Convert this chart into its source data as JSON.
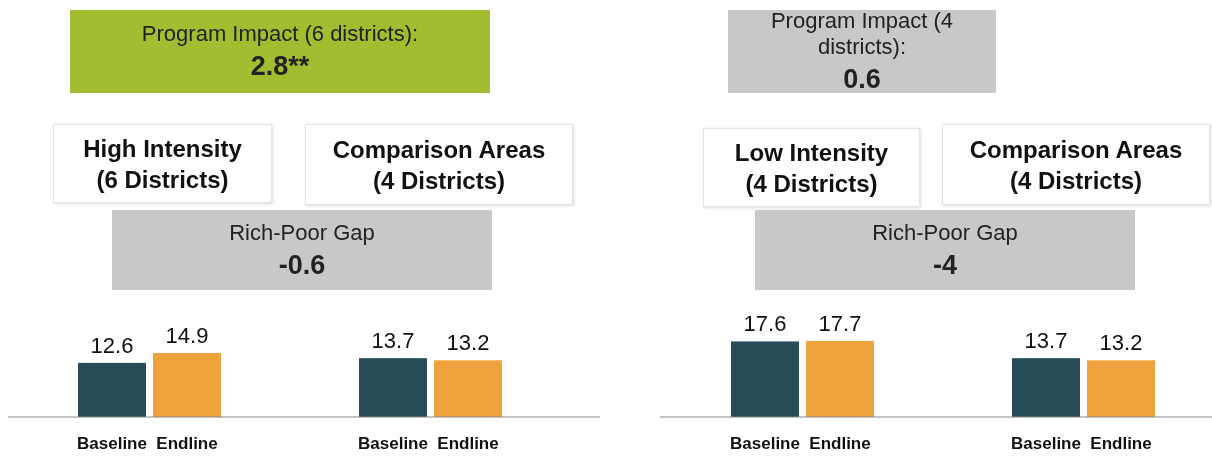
{
  "chart_data": [
    {
      "type": "bar",
      "categories": [
        "Baseline",
        "Endline",
        "Baseline",
        "Endline"
      ],
      "colors": [
        "#264d57",
        "#f0a23c",
        "#264d57",
        "#f0a23c"
      ],
      "values": [
        12.6,
        14.9,
        13.7,
        13.2
      ],
      "data_labels": true,
      "annotations": [
        "Program Impact (6 districts):",
        "2.8**",
        "High Intensity\n(6 Districts)",
        "Comparison Areas\n(4 Districts)",
        "Rich-Poor Gap",
        "-0.6"
      ]
    },
    {
      "type": "bar",
      "categories": [
        "Baseline",
        "Endline",
        "Baseline",
        "Endline"
      ],
      "colors": [
        "#264d57",
        "#f0a23c",
        "#264d57",
        "#f0a23c"
      ],
      "values": [
        17.6,
        17.7,
        13.7,
        13.2
      ],
      "data_labels": true,
      "annotations": [
        "Program Impact (4 districts):",
        "0.6",
        "Low Intensity\n(4 Districts)",
        "Comparison Areas\n(4 Districts)",
        "Rich-Poor Gap",
        "-4"
      ]
    }
  ]
}
